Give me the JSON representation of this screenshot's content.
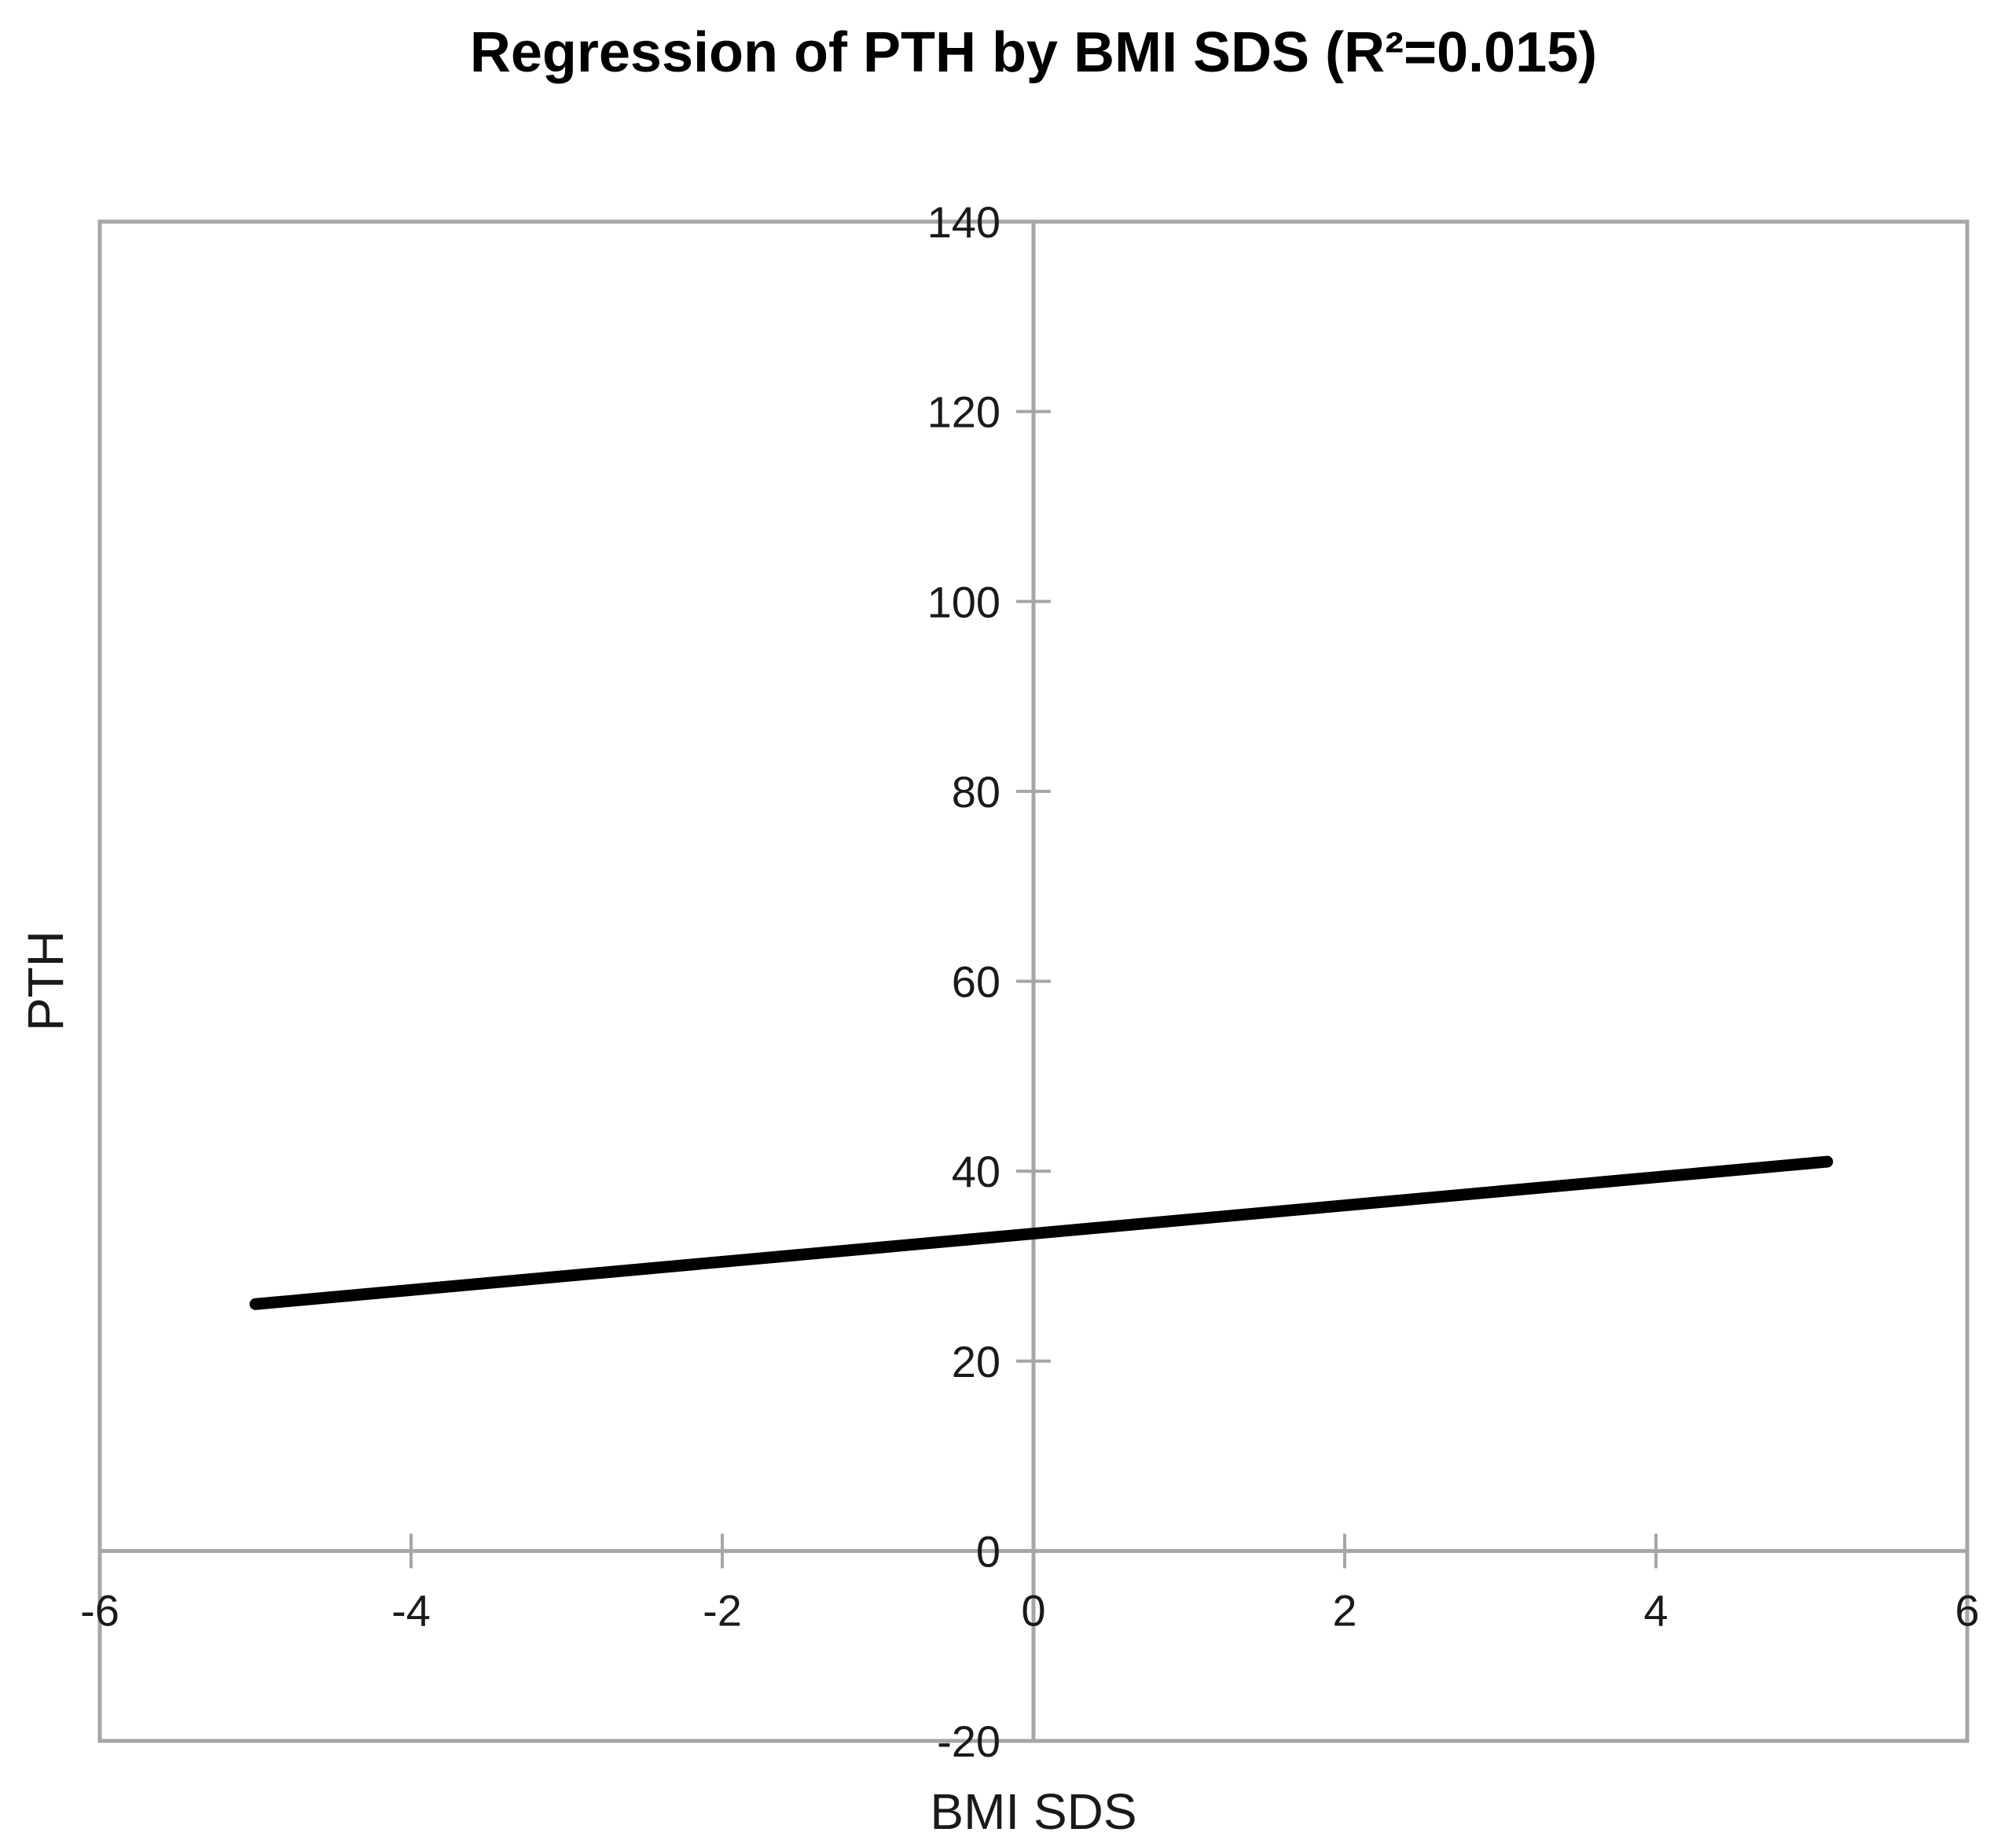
{
  "chart_data": {
    "type": "line",
    "title": "Regression of PTH by BMI SDS (R²=0.015)",
    "xlabel": "BMI SDS",
    "ylabel": "PTH",
    "xlim": [
      -6,
      6
    ],
    "ylim": [
      -20,
      140
    ],
    "x_ticks": [
      -6,
      -4,
      -2,
      0,
      2,
      4,
      6
    ],
    "y_ticks": [
      140,
      120,
      100,
      80,
      60,
      40,
      20,
      0,
      -20
    ],
    "axes_cross_at": [
      0,
      0
    ],
    "grid": false,
    "legend": "none",
    "series": [
      {
        "name": "regression-line",
        "label": "Regression of PTH by BMI SDS",
        "x": [
          -5.0,
          5.1
        ],
        "y": [
          26,
          41
        ],
        "color": "#000000",
        "stroke_width": 15
      }
    ],
    "regression": {
      "slope": 1.5,
      "intercept": 33.4,
      "r_squared": 0.015
    },
    "colors": {
      "axis": "#a6a6a6",
      "tick_text": "#1a1a1a",
      "title_text": "#000000",
      "background": "#ffffff"
    }
  }
}
